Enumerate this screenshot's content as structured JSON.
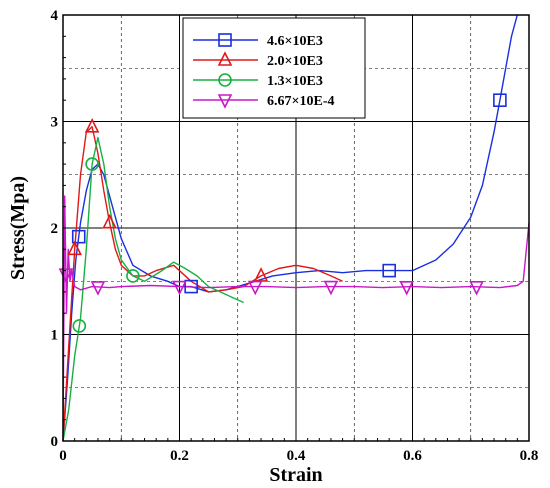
{
  "chart_data": {
    "type": "line",
    "xlabel": "Strain",
    "ylabel": "Stress(Mpa)",
    "xlim": [
      0,
      0.8
    ],
    "ylim": [
      0,
      4
    ],
    "xticks": [
      0,
      0.2,
      0.4,
      0.6,
      0.8
    ],
    "xtick_labels": [
      "0",
      "0.2",
      "0.4",
      "0.6",
      "0.8"
    ],
    "yticks": [
      0,
      1,
      2,
      3,
      4
    ],
    "ytick_labels": [
      "0",
      "1",
      "2",
      "3",
      "4"
    ],
    "grid": true,
    "legend_position": "top-center",
    "series": [
      {
        "name": "4.6×10E3",
        "color": "#1a2fe0",
        "marker": "square",
        "marker_x": [
          0.027,
          0.22,
          0.56,
          0.75
        ],
        "x": [
          0.0,
          0.008,
          0.015,
          0.022,
          0.03,
          0.04,
          0.05,
          0.06,
          0.07,
          0.085,
          0.1,
          0.12,
          0.15,
          0.18,
          0.2,
          0.22,
          0.25,
          0.28,
          0.3,
          0.33,
          0.36,
          0.4,
          0.44,
          0.48,
          0.52,
          0.56,
          0.6,
          0.64,
          0.67,
          0.7,
          0.72,
          0.74,
          0.75,
          0.76,
          0.77,
          0.78
        ],
        "y": [
          0.0,
          0.6,
          1.2,
          1.7,
          2.05,
          2.35,
          2.55,
          2.6,
          2.5,
          2.2,
          1.9,
          1.65,
          1.55,
          1.5,
          1.45,
          1.45,
          1.4,
          1.42,
          1.45,
          1.5,
          1.55,
          1.58,
          1.6,
          1.58,
          1.6,
          1.6,
          1.6,
          1.7,
          1.85,
          2.1,
          2.4,
          2.9,
          3.2,
          3.5,
          3.8,
          4.0
        ]
      },
      {
        "name": "2.0×10E3",
        "color": "#e01818",
        "marker": "triangle-up",
        "marker_x": [
          0.02,
          0.05,
          0.08,
          0.34
        ],
        "x": [
          0.0,
          0.01,
          0.02,
          0.03,
          0.04,
          0.05,
          0.06,
          0.07,
          0.08,
          0.09,
          0.1,
          0.12,
          0.14,
          0.16,
          0.19,
          0.22,
          0.25,
          0.28,
          0.31,
          0.34,
          0.37,
          0.4,
          0.43,
          0.46,
          0.48
        ],
        "y": [
          0.0,
          0.9,
          1.8,
          2.5,
          2.9,
          2.95,
          2.7,
          2.35,
          2.05,
          1.8,
          1.65,
          1.55,
          1.55,
          1.6,
          1.65,
          1.5,
          1.4,
          1.42,
          1.45,
          1.55,
          1.62,
          1.65,
          1.62,
          1.55,
          1.5
        ]
      },
      {
        "name": "1.3×10E3",
        "color": "#18b040",
        "marker": "circle",
        "marker_x": [
          0.028,
          0.05,
          0.12
        ],
        "x": [
          0.0,
          0.01,
          0.02,
          0.03,
          0.04,
          0.05,
          0.06,
          0.07,
          0.08,
          0.09,
          0.1,
          0.12,
          0.14,
          0.17,
          0.19,
          0.21,
          0.23,
          0.25,
          0.27,
          0.29,
          0.31
        ],
        "y": [
          0.0,
          0.3,
          0.8,
          1.15,
          1.8,
          2.6,
          2.85,
          2.6,
          2.2,
          1.9,
          1.7,
          1.55,
          1.5,
          1.6,
          1.68,
          1.62,
          1.55,
          1.45,
          1.4,
          1.35,
          1.3
        ]
      },
      {
        "name": "6.67×10E-4",
        "color": "#c818c8",
        "marker": "triangle-down",
        "marker_x": [
          0.005,
          0.06,
          0.2,
          0.33,
          0.46,
          0.59,
          0.71
        ],
        "x": [
          0.0,
          0.003,
          0.006,
          0.009,
          0.012,
          0.015,
          0.02,
          0.03,
          0.05,
          0.08,
          0.1,
          0.15,
          0.2,
          0.25,
          0.3,
          0.35,
          0.4,
          0.45,
          0.5,
          0.55,
          0.6,
          0.65,
          0.7,
          0.75,
          0.78,
          0.79,
          0.8
        ],
        "y": [
          0.0,
          2.3,
          1.2,
          1.8,
          1.5,
          1.6,
          1.45,
          1.42,
          1.45,
          1.44,
          1.45,
          1.46,
          1.45,
          1.44,
          1.45,
          1.45,
          1.44,
          1.45,
          1.45,
          1.44,
          1.45,
          1.44,
          1.45,
          1.44,
          1.46,
          1.5,
          2.05
        ]
      }
    ]
  }
}
